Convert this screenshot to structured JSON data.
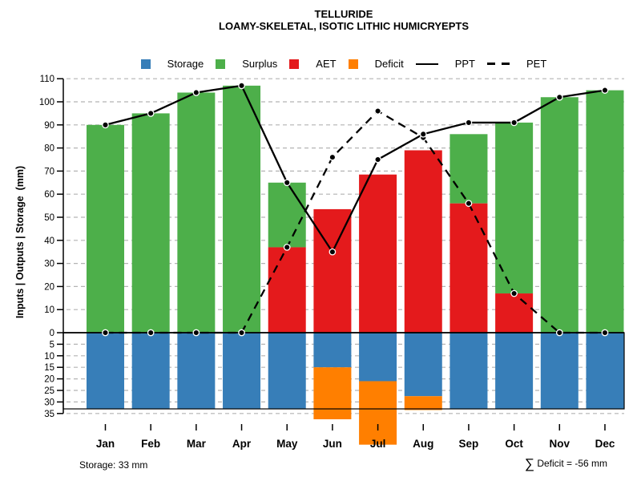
{
  "colors": {
    "storage": "#377eb8",
    "surplus": "#4daf4a",
    "aet": "#e41a1c",
    "deficit": "#ff7f00",
    "line": "#000000",
    "grid": "#b4b4b4"
  },
  "legend": {
    "items": [
      {
        "label": "Storage"
      },
      {
        "label": "Surplus"
      },
      {
        "label": "AET"
      },
      {
        "label": "Deficit"
      },
      {
        "label": "PPT"
      },
      {
        "label": "PET"
      }
    ]
  },
  "annotations": {
    "storage": "Storage: 33 mm",
    "sigma": "∑",
    "deficit_sum": "Deficit = -56 mm"
  },
  "chart_data": {
    "type": "bar",
    "subtype": "stacked water-balance bars with PPT/PET line overlay",
    "title": "TELLURIDE",
    "subtitle": "LOAMY-SKELETAL, ISOTIC LITHIC HUMICRYEPTS",
    "ylabel": "Inputs | Outputs | Storage  (mm)",
    "categories": [
      "Jan",
      "Feb",
      "Mar",
      "Apr",
      "May",
      "Jun",
      "Jul",
      "Aug",
      "Sep",
      "Oct",
      "Nov",
      "Dec"
    ],
    "y_ticks_above": [
      0,
      10,
      20,
      30,
      40,
      50,
      60,
      70,
      80,
      90,
      100,
      110
    ],
    "y_ticks_below": [
      5,
      10,
      15,
      20,
      25,
      30,
      35
    ],
    "ylim_above": [
      0,
      110
    ],
    "ylim_below": [
      0,
      35
    ],
    "grid": "dashed-horizontal",
    "legend_position": "top-center",
    "series": [
      {
        "name": "PPT",
        "type": "line",
        "style": "solid",
        "values": [
          90,
          95,
          104,
          107,
          65,
          35,
          75,
          86,
          91,
          91,
          102,
          105
        ]
      },
      {
        "name": "PET",
        "type": "line",
        "style": "dashed",
        "values": [
          0,
          0,
          0,
          0,
          37,
          76,
          96,
          84.5,
          56,
          17,
          0,
          0
        ]
      },
      {
        "name": "AET",
        "type": "bar",
        "color_key": "aet",
        "values": [
          0,
          0,
          0,
          0,
          37,
          53.5,
          68.5,
          79,
          56,
          17,
          0,
          0
        ]
      },
      {
        "name": "Surplus",
        "type": "bar",
        "stacked_on": "AET",
        "color_key": "surplus",
        "values": [
          90,
          95,
          104,
          107,
          28,
          0,
          0,
          0,
          30,
          74,
          102,
          105
        ]
      },
      {
        "name": "Storage",
        "type": "bar-below-zero",
        "color_key": "storage",
        "values": [
          33,
          33,
          33,
          33,
          33,
          15,
          21,
          27.5,
          33,
          33,
          33,
          33
        ]
      },
      {
        "name": "Deficit",
        "type": "bar-below-storage",
        "color_key": "deficit",
        "values": [
          0,
          0,
          0,
          0,
          0,
          22.5,
          27.5,
          6,
          0,
          0,
          0,
          0
        ]
      }
    ],
    "storage_capacity_mm": 33,
    "deficit_total_mm": -56
  }
}
